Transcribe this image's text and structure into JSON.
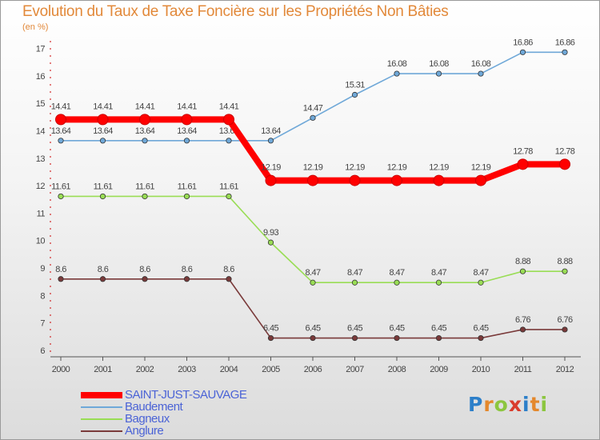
{
  "header": {
    "title": "Evolution du Taux de Taxe Foncière sur les Propriétés Non Bâties",
    "subtitle": "(en %)"
  },
  "logo": {
    "text": "Proxiti",
    "letter_colors": [
      "#2c7fc9",
      "#e4882c",
      "#8cc63f",
      "#d93c2c",
      "#2c7fc9",
      "#e4882c",
      "#8cc63f"
    ]
  },
  "chart_data": {
    "type": "line",
    "title": "Evolution du Taux de Taxe Foncière sur les Propriétés Non Bâties",
    "ylabel": "(en %)",
    "xlabel": "",
    "x": [
      "2000",
      "2001",
      "2002",
      "2003",
      "2004",
      "2005",
      "2006",
      "2007",
      "2008",
      "2009",
      "2010",
      "2011",
      "2012"
    ],
    "ylim": [
      6,
      17
    ],
    "yticks": [
      "6",
      "7",
      "8",
      "9",
      "10",
      "11",
      "12",
      "13",
      "14",
      "15",
      "16",
      "17"
    ],
    "legend_position": "bottom-left",
    "series": [
      {
        "name": "SAINT-JUST-SAUVAGE",
        "color": "#ff0000",
        "values": [
          14.41,
          14.41,
          14.41,
          14.41,
          14.41,
          12.19,
          12.19,
          12.19,
          12.19,
          12.19,
          12.19,
          12.78,
          12.78
        ],
        "labels": [
          "14.41",
          "14.41",
          "14.41",
          "14.41",
          "14.41",
          "12.19",
          "12.19",
          "12.19",
          "12.19",
          "12.19",
          "12.19",
          "12.78",
          "12.78"
        ]
      },
      {
        "name": "Baudement",
        "color": "#6fa8d8",
        "values": [
          13.64,
          13.64,
          13.64,
          13.64,
          13.64,
          13.64,
          14.47,
          15.31,
          16.08,
          16.08,
          16.08,
          16.86,
          16.86
        ],
        "labels": [
          "13.64",
          "13.64",
          "13.64",
          "13.64",
          "13.64",
          "13.64",
          "14.47",
          "15.31",
          "16.08",
          "16.08",
          "16.08",
          "16.86",
          "16.86"
        ]
      },
      {
        "name": "Bagneux",
        "color": "#99dd55",
        "values": [
          11.61,
          11.61,
          11.61,
          11.61,
          11.61,
          9.93,
          8.47,
          8.47,
          8.47,
          8.47,
          8.47,
          8.88,
          8.88
        ],
        "labels": [
          "11.61",
          "11.61",
          "11.61",
          "11.61",
          "11.61",
          "9.93",
          "8.47",
          "8.47",
          "8.47",
          "8.47",
          "8.47",
          "8.88",
          "8.88"
        ]
      },
      {
        "name": "Anglure",
        "color": "#7a3a3a",
        "values": [
          8.6,
          8.6,
          8.6,
          8.6,
          8.6,
          6.45,
          6.45,
          6.45,
          6.45,
          6.45,
          6.45,
          6.76,
          6.76
        ],
        "labels": [
          "8.6",
          "8.6",
          "8.6",
          "8.6",
          "8.6",
          "6.45",
          "6.45",
          "6.45",
          "6.45",
          "6.45",
          "6.45",
          "6.76",
          "6.76"
        ]
      }
    ]
  }
}
